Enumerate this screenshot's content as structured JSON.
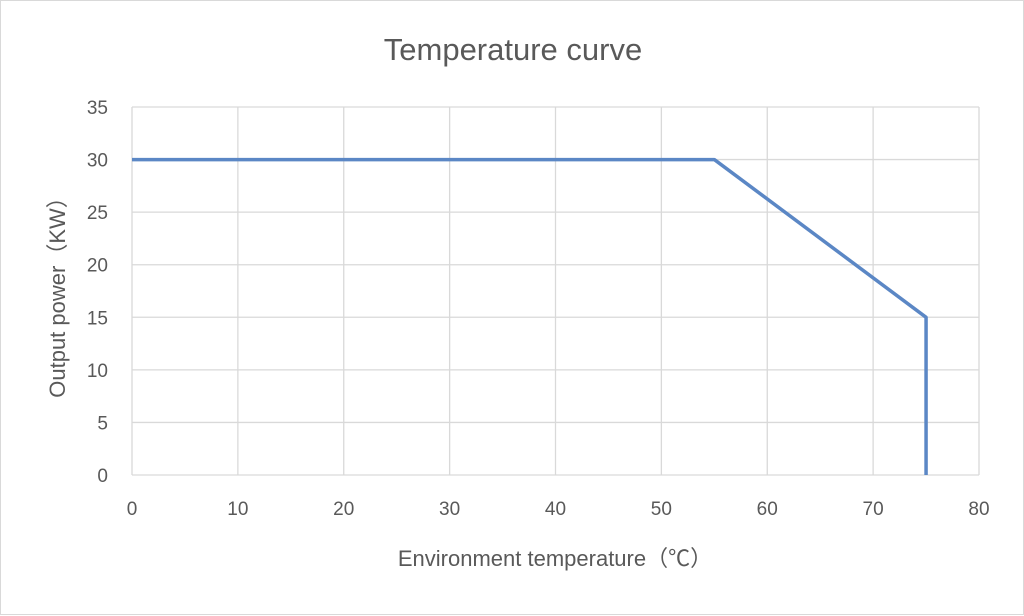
{
  "chart_data": {
    "type": "line",
    "title": "Temperature curve",
    "xlabel": "Environment temperature（℃）",
    "ylabel": "Output power（KW）",
    "xlim": [
      0,
      80
    ],
    "ylim": [
      0,
      35
    ],
    "x_ticks": [
      "0",
      "10",
      "20",
      "30",
      "40",
      "50",
      "60",
      "70",
      "80"
    ],
    "y_ticks": [
      "0",
      "5",
      "10",
      "15",
      "20",
      "25",
      "30",
      "35"
    ],
    "grid": true,
    "legend": "none",
    "series": [
      {
        "name": "Output power",
        "color": "#5b87c5",
        "x": [
          0,
          55,
          75,
          75
        ],
        "y": [
          30,
          30,
          15,
          0
        ]
      }
    ]
  }
}
